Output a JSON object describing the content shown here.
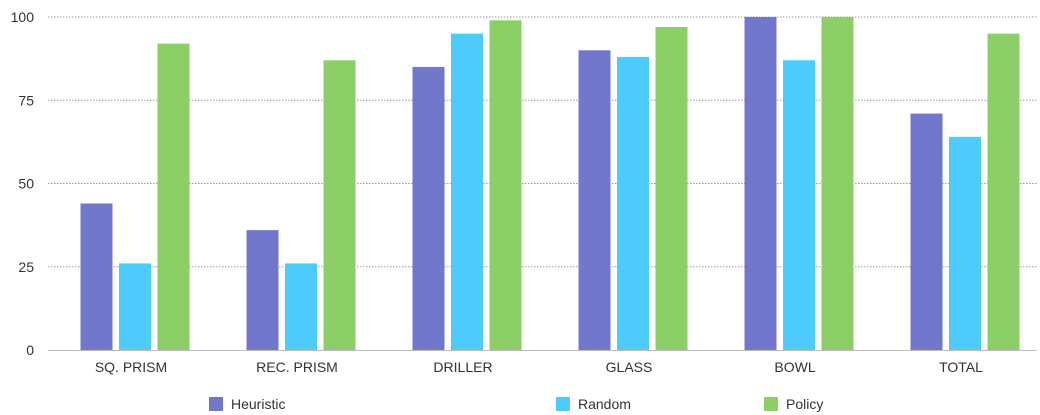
{
  "chart_data": {
    "type": "bar",
    "title": "",
    "xlabel": "",
    "ylabel": "",
    "ylim": [
      0,
      100
    ],
    "yticks": [
      0,
      25,
      50,
      75,
      100
    ],
    "grid": true,
    "legend_position": "bottom",
    "categories": [
      "SQ. PRISM",
      "REC. PRISM",
      "DRILLER",
      "GLASS",
      "BOWL",
      "TOTAL"
    ],
    "series": [
      {
        "name": "Heuristic",
        "color": "#7178cc",
        "values": [
          44,
          36,
          85,
          90,
          100,
          71
        ]
      },
      {
        "name": "Random",
        "color": "#4dcbfa",
        "values": [
          26,
          26,
          95,
          88,
          87,
          64
        ]
      },
      {
        "name": "Policy",
        "color": "#8ccf66",
        "values": [
          92,
          87,
          99,
          97,
          100,
          95
        ]
      }
    ]
  }
}
